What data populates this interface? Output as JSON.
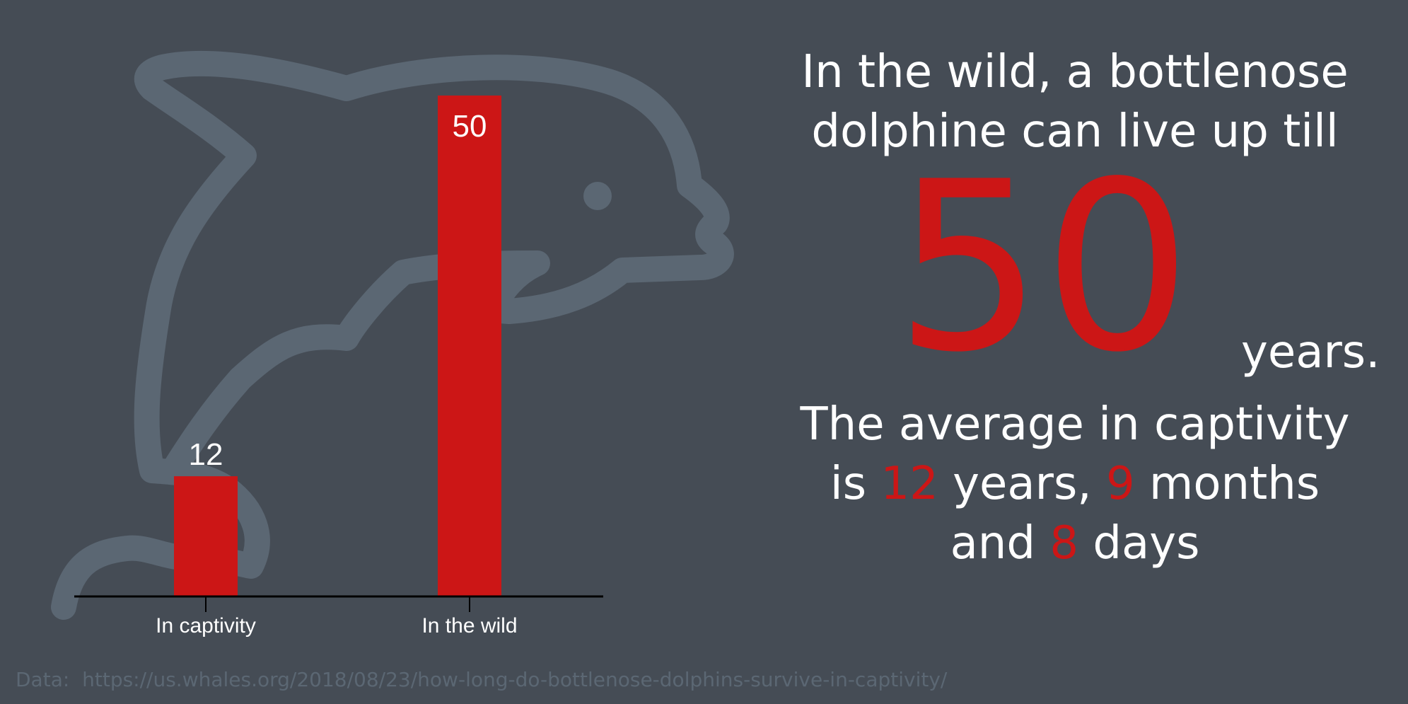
{
  "colors": {
    "background": "#454c55",
    "bar": "#cc1616",
    "text": "#ffffff",
    "dolphin": "#5b6773",
    "accent": "#cc1616"
  },
  "icon": "dolphin-outline-icon",
  "chart_data": {
    "type": "bar",
    "categories": [
      "In captivity",
      "In the wild"
    ],
    "values": [
      12,
      50
    ],
    "data_labels": [
      "12",
      "50"
    ],
    "ylim": [
      0,
      50
    ],
    "title": "",
    "xlabel": "",
    "ylabel": "",
    "grid": false
  },
  "panel": {
    "headline_line1": "In the wild, a bottlenose",
    "headline_line2": "dolphine can live up till",
    "big_number": "50",
    "big_unit": "years.",
    "captivity_line1": "The average in captivity",
    "captivity_is": "is ",
    "captivity_years_value": "12",
    "captivity_years_word": " years, ",
    "captivity_months_value": "9",
    "captivity_months_word": " months",
    "captivity_and": "and ",
    "captivity_days_value": "8",
    "captivity_days_word": " days"
  },
  "source": {
    "label": "Data:",
    "url": "https://us.whales.org/2018/08/23/how-long-do-bottlenose-dolphins-survive-in-captivity/"
  }
}
